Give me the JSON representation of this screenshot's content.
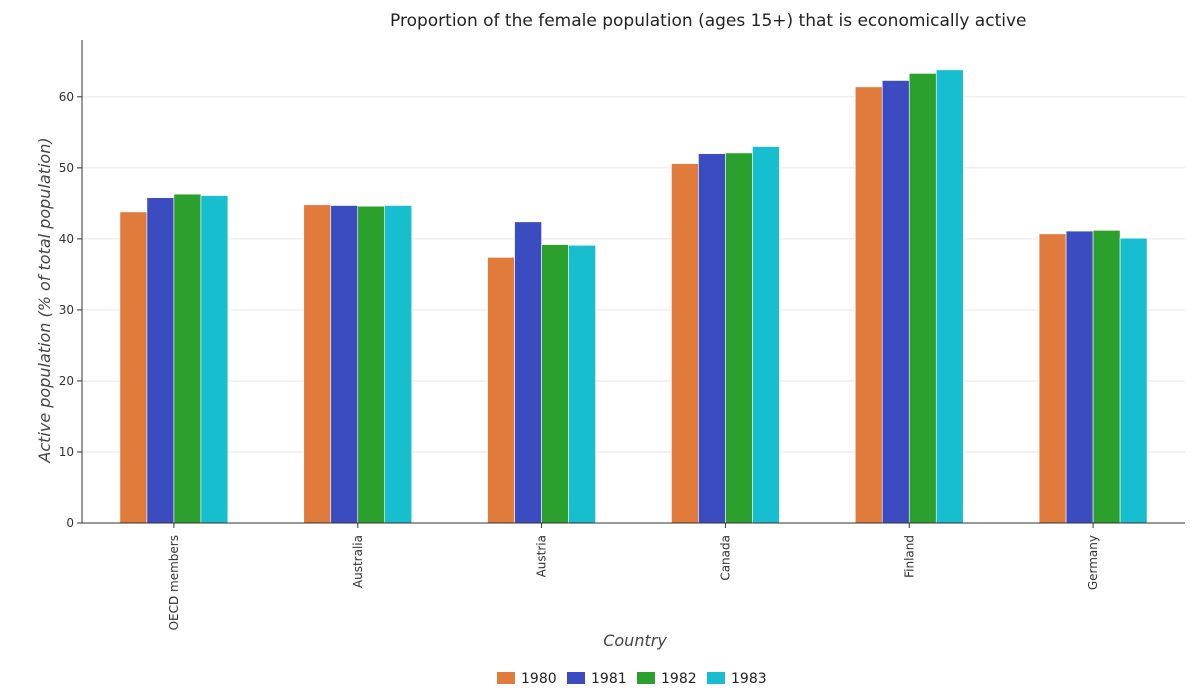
{
  "chart_data": {
    "type": "bar",
    "title": "Proportion of the female population (ages 15+) that is economically active",
    "xlabel": "Country",
    "ylabel": "Active population (% of total population)",
    "categories": [
      "OECD members",
      "Australia",
      "Austria",
      "Canada",
      "Finland",
      "Germany"
    ],
    "series": [
      {
        "name": "1980",
        "color": "#e07b3c",
        "values": [
          43.8,
          44.8,
          37.4,
          50.6,
          61.4,
          40.7
        ]
      },
      {
        "name": "1981",
        "color": "#3b4cc0",
        "values": [
          45.8,
          44.7,
          42.4,
          52.0,
          62.3,
          41.1
        ]
      },
      {
        "name": "1982",
        "color": "#2ca02c",
        "values": [
          46.3,
          44.6,
          39.2,
          52.1,
          63.3,
          41.2
        ]
      },
      {
        "name": "1983",
        "color": "#17becf",
        "values": [
          46.1,
          44.7,
          39.1,
          53.0,
          63.8,
          40.1
        ]
      }
    ],
    "ylim": [
      0,
      68
    ],
    "yticks": [
      0,
      10,
      20,
      30,
      40,
      50,
      60
    ],
    "grid": true,
    "legend_position": "bottom-center"
  }
}
